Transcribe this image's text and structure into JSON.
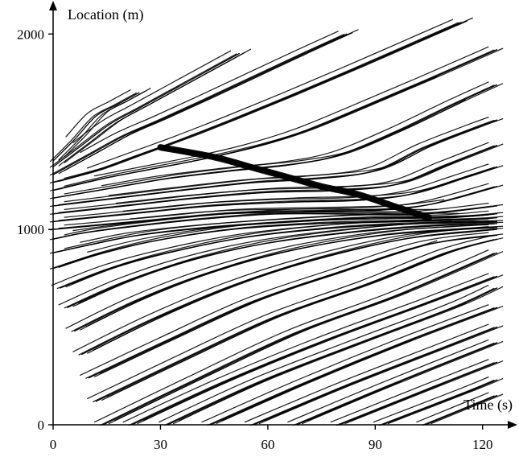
{
  "chart_data": {
    "type": "line",
    "title": "",
    "xlabel": "Time (s)",
    "ylabel": "Location (m)",
    "xlim": [
      0,
      125
    ],
    "ylim": [
      0,
      2100
    ],
    "xticks": [
      0,
      30,
      60,
      90,
      120
    ],
    "xtick_labels": [
      "0",
      "30",
      "60",
      "90",
      "120"
    ],
    "yticks": [
      0,
      1000,
      2000
    ],
    "ytick_labels": [
      "0",
      "1000",
      "2000"
    ],
    "grid": false,
    "legend": "none",
    "colors": {
      "line": "#000000",
      "background": "#ffffff"
    },
    "description_series": {
      "kind": "vehicle-trajectories",
      "count": 130
    },
    "series": [
      {
        "values": [
          [
            0,
            1350
          ],
          [
            6,
            1460
          ],
          [
            12,
            1580
          ],
          [
            18,
            1640
          ],
          [
            24,
            1700
          ]
        ]
      },
      {
        "values": [
          [
            0,
            1320
          ],
          [
            8,
            1430
          ],
          [
            16,
            1540
          ],
          [
            24,
            1620
          ],
          [
            34,
            1720
          ],
          [
            44,
            1820
          ],
          [
            52,
            1900
          ]
        ]
      },
      {
        "values": [
          [
            0,
            1280
          ],
          [
            10,
            1380
          ],
          [
            20,
            1480
          ],
          [
            30,
            1560
          ],
          [
            42,
            1660
          ],
          [
            56,
            1780
          ],
          [
            70,
            1900
          ],
          [
            82,
            2000
          ]
        ]
      },
      {
        "values": [
          [
            0,
            1240
          ],
          [
            12,
            1300
          ],
          [
            24,
            1380
          ],
          [
            36,
            1460
          ],
          [
            50,
            1560
          ],
          [
            66,
            1680
          ],
          [
            84,
            1820
          ],
          [
            104,
            1980
          ],
          [
            114,
            2060
          ]
        ]
      },
      {
        "values": [
          [
            0,
            1200
          ],
          [
            14,
            1260
          ],
          [
            28,
            1310
          ],
          [
            42,
            1360
          ],
          [
            56,
            1420
          ],
          [
            70,
            1500
          ],
          [
            86,
            1620
          ],
          [
            104,
            1760
          ],
          [
            124,
            1920
          ]
        ]
      },
      {
        "values": [
          [
            0,
            1160
          ],
          [
            16,
            1210
          ],
          [
            32,
            1260
          ],
          [
            50,
            1300
          ],
          [
            66,
            1330
          ],
          [
            80,
            1380
          ],
          [
            96,
            1500
          ],
          [
            112,
            1640
          ],
          [
            124,
            1740
          ]
        ]
      },
      {
        "values": [
          [
            0,
            1120
          ],
          [
            18,
            1160
          ],
          [
            36,
            1200
          ],
          [
            56,
            1240
          ],
          [
            74,
            1260
          ],
          [
            90,
            1300
          ],
          [
            104,
            1420
          ],
          [
            118,
            1520
          ],
          [
            124,
            1560
          ]
        ]
      },
      {
        "values": [
          [
            0,
            1080
          ],
          [
            20,
            1120
          ],
          [
            40,
            1160
          ],
          [
            60,
            1190
          ],
          [
            80,
            1200
          ],
          [
            96,
            1230
          ],
          [
            110,
            1330
          ],
          [
            124,
            1430
          ]
        ]
      },
      {
        "values": [
          [
            0,
            1040
          ],
          [
            22,
            1080
          ],
          [
            44,
            1120
          ],
          [
            66,
            1140
          ],
          [
            86,
            1150
          ],
          [
            100,
            1180
          ],
          [
            114,
            1260
          ],
          [
            124,
            1320
          ]
        ]
      },
      {
        "values": [
          [
            0,
            1000
          ],
          [
            24,
            1040
          ],
          [
            48,
            1080
          ],
          [
            70,
            1090
          ],
          [
            92,
            1100
          ],
          [
            106,
            1130
          ],
          [
            124,
            1220
          ]
        ]
      },
      {
        "values": [
          [
            0,
            950
          ],
          [
            8,
            980
          ],
          [
            20,
            1010
          ],
          [
            40,
            1050
          ],
          [
            62,
            1080
          ],
          [
            84,
            1080
          ],
          [
            104,
            1080
          ],
          [
            124,
            1120
          ]
        ]
      },
      {
        "values": [
          [
            0,
            880
          ],
          [
            10,
            920
          ],
          [
            24,
            970
          ],
          [
            44,
            1010
          ],
          [
            68,
            1040
          ],
          [
            90,
            1060
          ],
          [
            110,
            1060
          ],
          [
            124,
            1080
          ]
        ]
      },
      {
        "values": [
          [
            0,
            800
          ],
          [
            12,
            870
          ],
          [
            28,
            940
          ],
          [
            50,
            1000
          ],
          [
            74,
            1030
          ],
          [
            96,
            1040
          ],
          [
            116,
            1050
          ],
          [
            124,
            1060
          ]
        ]
      },
      {
        "values": [
          [
            2,
            700
          ],
          [
            16,
            800
          ],
          [
            32,
            880
          ],
          [
            54,
            960
          ],
          [
            80,
            1010
          ],
          [
            102,
            1030
          ],
          [
            124,
            1040
          ]
        ]
      },
      {
        "values": [
          [
            4,
            600
          ],
          [
            20,
            730
          ],
          [
            38,
            840
          ],
          [
            60,
            930
          ],
          [
            86,
            990
          ],
          [
            108,
            1020
          ],
          [
            124,
            1030
          ]
        ]
      },
      {
        "values": [
          [
            6,
            480
          ],
          [
            24,
            640
          ],
          [
            44,
            780
          ],
          [
            66,
            890
          ],
          [
            92,
            970
          ],
          [
            114,
            1000
          ],
          [
            124,
            1010
          ]
        ]
      },
      {
        "values": [
          [
            8,
            360
          ],
          [
            28,
            540
          ],
          [
            50,
            710
          ],
          [
            72,
            840
          ],
          [
            98,
            950
          ],
          [
            118,
            990
          ],
          [
            124,
            1000
          ]
        ]
      },
      {
        "values": [
          [
            10,
            240
          ],
          [
            32,
            430
          ],
          [
            56,
            630
          ],
          [
            80,
            780
          ],
          [
            104,
            920
          ],
          [
            124,
            970
          ]
        ]
      },
      {
        "values": [
          [
            12,
            120
          ],
          [
            36,
            330
          ],
          [
            62,
            550
          ],
          [
            88,
            720
          ],
          [
            110,
            880
          ],
          [
            124,
            950
          ]
        ]
      },
      {
        "values": [
          [
            14,
            0
          ],
          [
            40,
            230
          ],
          [
            68,
            470
          ],
          [
            96,
            660
          ],
          [
            124,
            880
          ]
        ]
      },
      {
        "values": [
          [
            22,
            0
          ],
          [
            48,
            220
          ],
          [
            76,
            430
          ],
          [
            104,
            620
          ],
          [
            124,
            760
          ]
        ]
      },
      {
        "values": [
          [
            32,
            0
          ],
          [
            58,
            220
          ],
          [
            86,
            420
          ],
          [
            112,
            600
          ],
          [
            124,
            700
          ]
        ]
      },
      {
        "values": [
          [
            44,
            0
          ],
          [
            70,
            210
          ],
          [
            98,
            420
          ],
          [
            124,
            600
          ]
        ]
      },
      {
        "values": [
          [
            56,
            0
          ],
          [
            82,
            200
          ],
          [
            110,
            400
          ],
          [
            124,
            500
          ]
        ]
      },
      {
        "values": [
          [
            68,
            0
          ],
          [
            94,
            200
          ],
          [
            124,
            420
          ]
        ]
      },
      {
        "values": [
          [
            80,
            0
          ],
          [
            106,
            190
          ],
          [
            124,
            320
          ]
        ]
      },
      {
        "values": [
          [
            92,
            0
          ],
          [
            116,
            170
          ],
          [
            124,
            230
          ]
        ]
      },
      {
        "values": [
          [
            104,
            0
          ],
          [
            124,
            150
          ]
        ]
      }
    ],
    "shock_band": [
      [
        30,
        1420
      ],
      [
        45,
        1370
      ],
      [
        55,
        1320
      ],
      [
        65,
        1270
      ],
      [
        75,
        1220
      ],
      [
        85,
        1180
      ],
      [
        95,
        1120
      ],
      [
        105,
        1060
      ]
    ]
  }
}
